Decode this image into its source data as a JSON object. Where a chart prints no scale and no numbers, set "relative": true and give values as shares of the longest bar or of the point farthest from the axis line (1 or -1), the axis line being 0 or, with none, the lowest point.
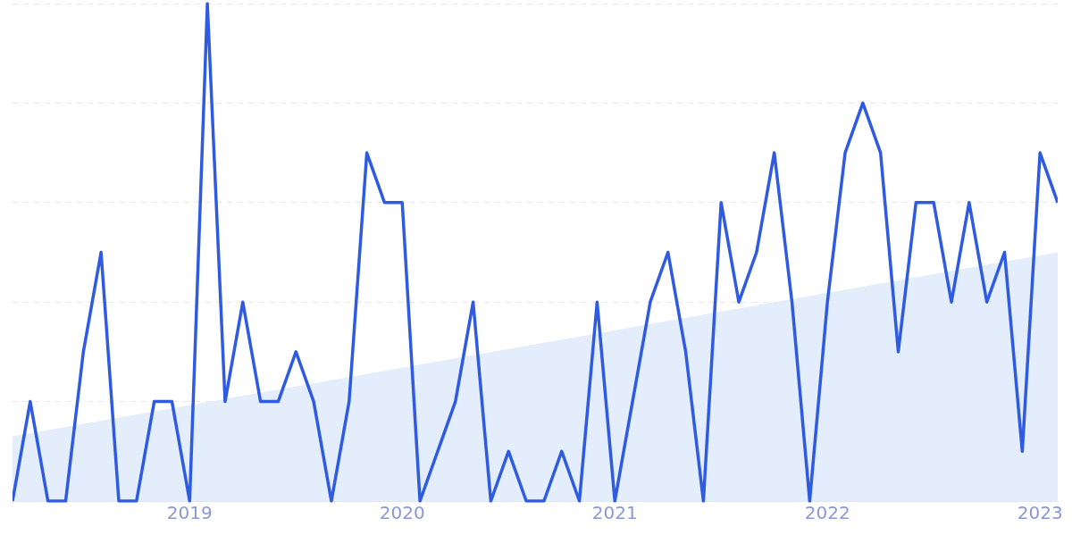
{
  "chart_data": {
    "type": "line",
    "relative": true,
    "grid": "y",
    "marker": "none",
    "line_style": "solid",
    "x": [
      "2018-03",
      "2018-04",
      "2018-05",
      "2018-06",
      "2018-07",
      "2018-08",
      "2018-09",
      "2018-10",
      "2018-11",
      "2018-12",
      "2019-01",
      "2019-02",
      "2019-03",
      "2019-04",
      "2019-05",
      "2019-06",
      "2019-07",
      "2019-08",
      "2019-09",
      "2019-10",
      "2019-11",
      "2019-12",
      "2020-01",
      "2020-02",
      "2020-03",
      "2020-04",
      "2020-05",
      "2020-06",
      "2020-07",
      "2020-08",
      "2020-09",
      "2020-10",
      "2020-11",
      "2020-12",
      "2021-01",
      "2021-02",
      "2021-03",
      "2021-04",
      "2021-05",
      "2021-06",
      "2021-07",
      "2021-08",
      "2021-09",
      "2021-10",
      "2021-11",
      "2021-12",
      "2022-01",
      "2022-02",
      "2022-03",
      "2022-04",
      "2022-05",
      "2022-06",
      "2022-07",
      "2022-08",
      "2022-09",
      "2022-10",
      "2022-11",
      "2022-12",
      "2023-01",
      "2023-02"
    ],
    "xlim": [
      "2018-03",
      "2023-02"
    ],
    "xticks": [
      "2019",
      "2020",
      "2021",
      "2022",
      "2023"
    ],
    "series": [
      {
        "type": "area",
        "color": "#e3edfc",
        "x": [
          "2018-03",
          "2023-02"
        ],
        "values": [
          0.13,
          0.5
        ]
      },
      {
        "color": "#2f5be0",
        "values": [
          0,
          0.2,
          0,
          0,
          0.3,
          0.5,
          0,
          0,
          0.2,
          0.2,
          0,
          1,
          0.2,
          0.4,
          0.2,
          0.2,
          0.3,
          0.2,
          0,
          0.2,
          0.7,
          0.6,
          0.6,
          0,
          0.1,
          0.2,
          0.4,
          0,
          0.1,
          0,
          0,
          0.1,
          0,
          0.4,
          0,
          0.2,
          0.4,
          0.5,
          0.3,
          0,
          0.6,
          0.4,
          0.5,
          0.7,
          0.4,
          0,
          0.4,
          0.7,
          0.8,
          0.7,
          0.3,
          0.6,
          0.6,
          0.4,
          0.6,
          0.4,
          0.5,
          0.1,
          0.7,
          0.6
        ]
      }
    ]
  }
}
